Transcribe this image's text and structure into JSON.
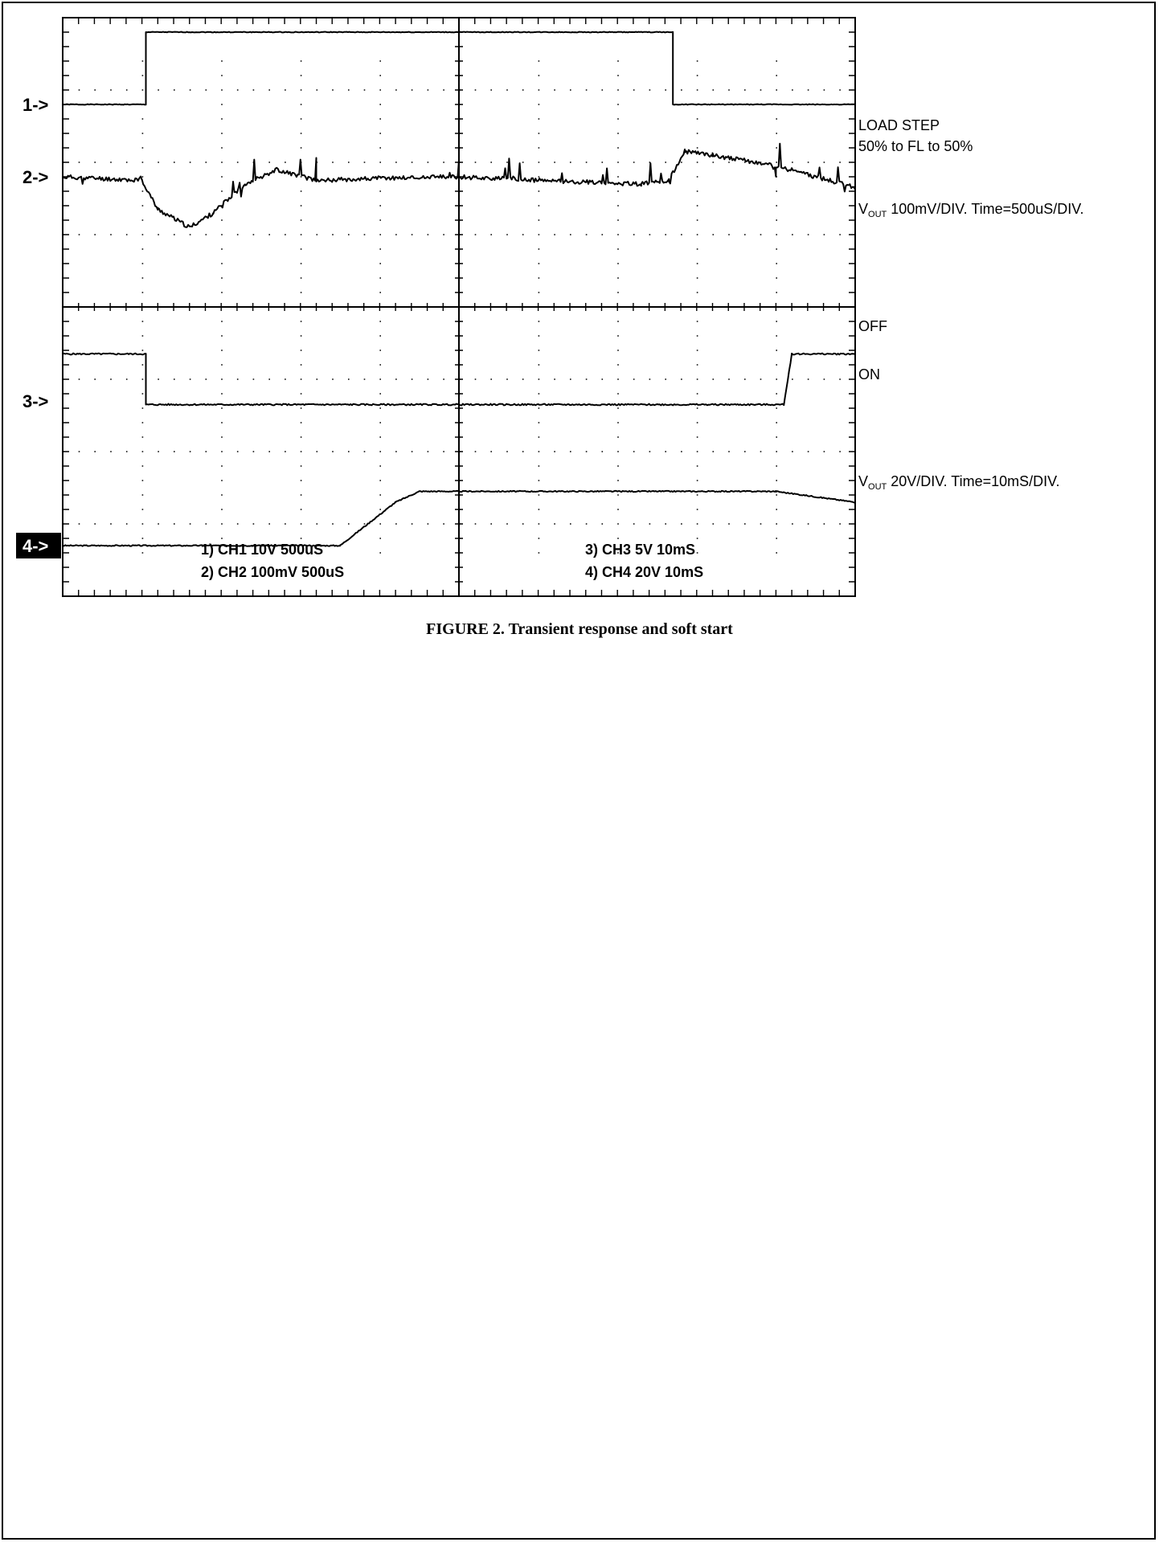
{
  "figure": {
    "caption": "FIGURE 2. Transient response and soft start"
  },
  "chart_data": {
    "type": "line",
    "grid": true,
    "divisions": {
      "x": 10,
      "y": 8
    },
    "markers": [
      {
        "text": "1->",
        "channel": 1,
        "style": "plain"
      },
      {
        "text": "2->",
        "channel": 2,
        "style": "plain"
      },
      {
        "text": "3->",
        "channel": 3,
        "style": "plain"
      },
      {
        "text": "4->",
        "channel": 4,
        "style": "inverted"
      }
    ],
    "right_annotations": [
      {
        "id": "load-step-title",
        "text": "LOAD STEP"
      },
      {
        "id": "load-step-range",
        "text": "50% to FL to 50%"
      },
      {
        "id": "vout-fast",
        "prefix": "V",
        "subscript": "OUT",
        "text": " 100mV/DIV. Time=500uS/DIV."
      },
      {
        "id": "off-label",
        "text": "OFF"
      },
      {
        "id": "on-label",
        "text": "ON"
      },
      {
        "id": "vout-slow",
        "prefix": "V",
        "subscript": "OUT",
        "text": " 20V/DIV. Time=10mS/DIV."
      }
    ],
    "channel_settings": [
      {
        "text": "1) CH1  10V      500uS"
      },
      {
        "text": "2) CH2  100mV  500uS"
      },
      {
        "text": "3) CH3  5V     10mS"
      },
      {
        "text": "4) CH4  20V   10mS"
      }
    ],
    "series": [
      {
        "name": "CH1",
        "kind": "step",
        "points": [
          [
            0,
            6.8
          ],
          [
            1.05,
            6.8
          ],
          [
            1.05,
            7.8
          ],
          [
            7.7,
            7.8
          ],
          [
            7.7,
            6.8
          ],
          [
            10,
            6.8
          ]
        ]
      },
      {
        "name": "CH2",
        "kind": "noisy",
        "noise": 0.06,
        "seed": 11,
        "points": [
          [
            0,
            5.8
          ],
          [
            1.0,
            5.75
          ],
          [
            1.2,
            5.35
          ],
          [
            1.6,
            5.1
          ],
          [
            1.9,
            5.3
          ],
          [
            2.3,
            5.7
          ],
          [
            2.7,
            5.9
          ],
          [
            3.2,
            5.75
          ],
          [
            4.0,
            5.78
          ],
          [
            5.0,
            5.8
          ],
          [
            6.0,
            5.75
          ],
          [
            7.3,
            5.7
          ],
          [
            7.65,
            5.75
          ],
          [
            7.85,
            6.15
          ],
          [
            8.2,
            6.1
          ],
          [
            9.0,
            5.95
          ],
          [
            10,
            5.65
          ]
        ]
      },
      {
        "name": "CH3",
        "kind": "step",
        "noise": 0.02,
        "seed": 5,
        "points": [
          [
            0,
            3.35
          ],
          [
            1.05,
            3.35
          ],
          [
            1.05,
            2.65
          ],
          [
            9.1,
            2.65
          ],
          [
            9.2,
            3.35
          ],
          [
            10,
            3.35
          ]
        ]
      },
      {
        "name": "CH4",
        "kind": "ramp",
        "noise": 0.015,
        "seed": 3,
        "points": [
          [
            0,
            0.7
          ],
          [
            3.5,
            0.7
          ],
          [
            4.2,
            1.3
          ],
          [
            4.5,
            1.45
          ],
          [
            5.0,
            1.45
          ],
          [
            9.0,
            1.45
          ],
          [
            10,
            1.3
          ]
        ]
      }
    ]
  }
}
